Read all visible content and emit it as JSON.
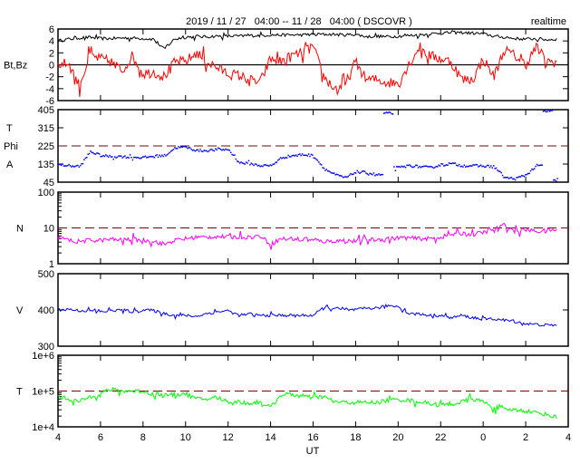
{
  "title": "2019 / 11 / 27   04:00 -- 11 / 28   04:00 ( DSCOVR )",
  "mode_label": "realtime",
  "colors": {
    "bt": "#000000",
    "bz": "#ff0000",
    "phi": "#0000ff",
    "n": "#ff00ff",
    "v": "#0000ff",
    "t": "#00ff00",
    "reference": "#800000"
  },
  "chart_data": [
    {
      "type": "line",
      "id": "mag",
      "ylabel": "Bt,Bz",
      "ylim": [
        -6,
        6
      ],
      "scale": "linear",
      "yticks": [
        6,
        4,
        2,
        0,
        -2,
        -4,
        -6
      ],
      "zero_line": 0,
      "x": "time_hours",
      "series": [
        {
          "name": "Bt",
          "color": "#000000",
          "values": [
            4,
            4.3,
            4.5,
            4.6,
            4.4,
            4.4,
            4.5,
            4.5,
            4.4,
            4.3,
            2.6,
            4.4,
            4.6,
            4.7,
            4.7,
            4.8,
            4.8,
            4.8,
            4.9,
            4.9,
            5.0,
            5.0,
            5.0,
            5.0,
            5.1,
            5.1,
            5.1,
            5.0,
            5.1,
            4.7,
            4.8,
            4.7,
            4.8,
            4.9,
            5.0,
            5.2,
            5.3,
            5.4,
            5.4,
            5.3,
            5.2,
            4.8,
            4.6,
            4.4,
            4.3,
            4.4,
            4.2,
            4.3
          ]
        },
        {
          "name": "Bz",
          "color": "#ff0000",
          "values": [
            0,
            0.3,
            -3.5,
            1.5,
            1,
            0.5,
            -1,
            1.5,
            -1.5,
            -1.2,
            -2,
            0.5,
            0.5,
            2,
            0.5,
            -0.5,
            -1.5,
            -1.8,
            -2.5,
            -3,
            1,
            0.5,
            1.5,
            2,
            3,
            -2,
            -4,
            -3.5,
            0.5,
            -2.5,
            -2.5,
            -3,
            -3,
            0,
            3,
            1.5,
            1,
            0.5,
            -2.5,
            -2.5,
            1,
            -2,
            2.5,
            1.5,
            0,
            3,
            0.5,
            0.5
          ]
        }
      ]
    },
    {
      "type": "scatter",
      "id": "phi",
      "ylabels": [
        "T",
        "Phi",
        "A"
      ],
      "ylim": [
        45,
        405
      ],
      "scale": "linear",
      "yticks": [
        405,
        315,
        225,
        135,
        45
      ],
      "reference_line": 225,
      "series": [
        {
          "name": "Phi",
          "color": "#0000ff",
          "values": [
            135,
            130,
            125,
            200,
            180,
            175,
            175,
            172,
            170,
            178,
            180,
            220,
            222,
            205,
            205,
            210,
            210,
            145,
            140,
            130,
            130,
            170,
            180,
            185,
            180,
            115,
            85,
            70,
            100,
            95,
            85,
            390,
            120,
            130,
            125,
            120,
            135,
            140,
            130,
            130,
            128,
            125,
            70,
            65,
            85,
            130,
            400,
            55
          ]
        }
      ]
    },
    {
      "type": "line",
      "id": "density",
      "ylabel": "N",
      "ylim": [
        1,
        100
      ],
      "scale": "log",
      "yticks": [
        100,
        10,
        1
      ],
      "reference_line": 10,
      "series": [
        {
          "name": "N",
          "color": "#ff00ff",
          "values": [
            5.5,
            4.5,
            4.2,
            4.5,
            4.5,
            4.8,
            4.6,
            4.8,
            4.5,
            4.3,
            3.5,
            4.5,
            5,
            5.5,
            5.5,
            5.8,
            5.5,
            5.6,
            5.5,
            6,
            3.5,
            5,
            5,
            4.8,
            4.5,
            4.2,
            4.3,
            4.5,
            4.2,
            4.8,
            4.6,
            5,
            5.2,
            5.3,
            5,
            5,
            5.5,
            6.5,
            7,
            6.5,
            7.5,
            9,
            12,
            8,
            9,
            8,
            8.5,
            9
          ]
        }
      ]
    },
    {
      "type": "line",
      "id": "speed",
      "ylabel": "V",
      "ylim": [
        300,
        500
      ],
      "scale": "linear",
      "yticks": [
        500,
        400,
        300
      ],
      "series": [
        {
          "name": "V",
          "color": "#0000ff",
          "values": [
            400,
            402,
            398,
            398,
            395,
            398,
            400,
            395,
            400,
            398,
            390,
            385,
            385,
            382,
            390,
            395,
            398,
            385,
            388,
            385,
            385,
            385,
            385,
            385,
            385,
            405,
            405,
            400,
            400,
            405,
            405,
            412,
            410,
            390,
            388,
            385,
            385,
            378,
            385,
            378,
            375,
            375,
            372,
            368,
            362,
            360,
            358,
            358
          ]
        }
      ]
    },
    {
      "type": "line",
      "id": "temperature",
      "ylabel": "T",
      "ylim": [
        10000,
        1000000
      ],
      "scale": "log",
      "yticks": [
        "1e+6",
        "1e+5",
        "1e+4"
      ],
      "reference_line": 100000,
      "series": [
        {
          "name": "T",
          "color": "#00ff00",
          "values": [
            70000,
            60000,
            50000,
            70000,
            90000,
            110000,
            100000,
            100000,
            100000,
            80000,
            75000,
            80000,
            85000,
            60000,
            60000,
            65000,
            50000,
            50000,
            45000,
            50000,
            35000,
            80000,
            80000,
            70000,
            65000,
            70000,
            50000,
            48000,
            48000,
            48000,
            48000,
            55000,
            58000,
            55000,
            50000,
            45000,
            40000,
            42000,
            50000,
            60000,
            50000,
            35000,
            30000,
            30000,
            28000,
            25000,
            22000,
            18000
          ]
        }
      ]
    }
  ],
  "x_axis": {
    "label": "UT",
    "range_hours": [
      4,
      28
    ],
    "sample_start_hour": 4,
    "sample_step_hours": 0.5,
    "tick_labels": [
      "4",
      "6",
      "8",
      "10",
      "12",
      "14",
      "16",
      "18",
      "20",
      "22",
      "0",
      "2",
      "4"
    ]
  }
}
